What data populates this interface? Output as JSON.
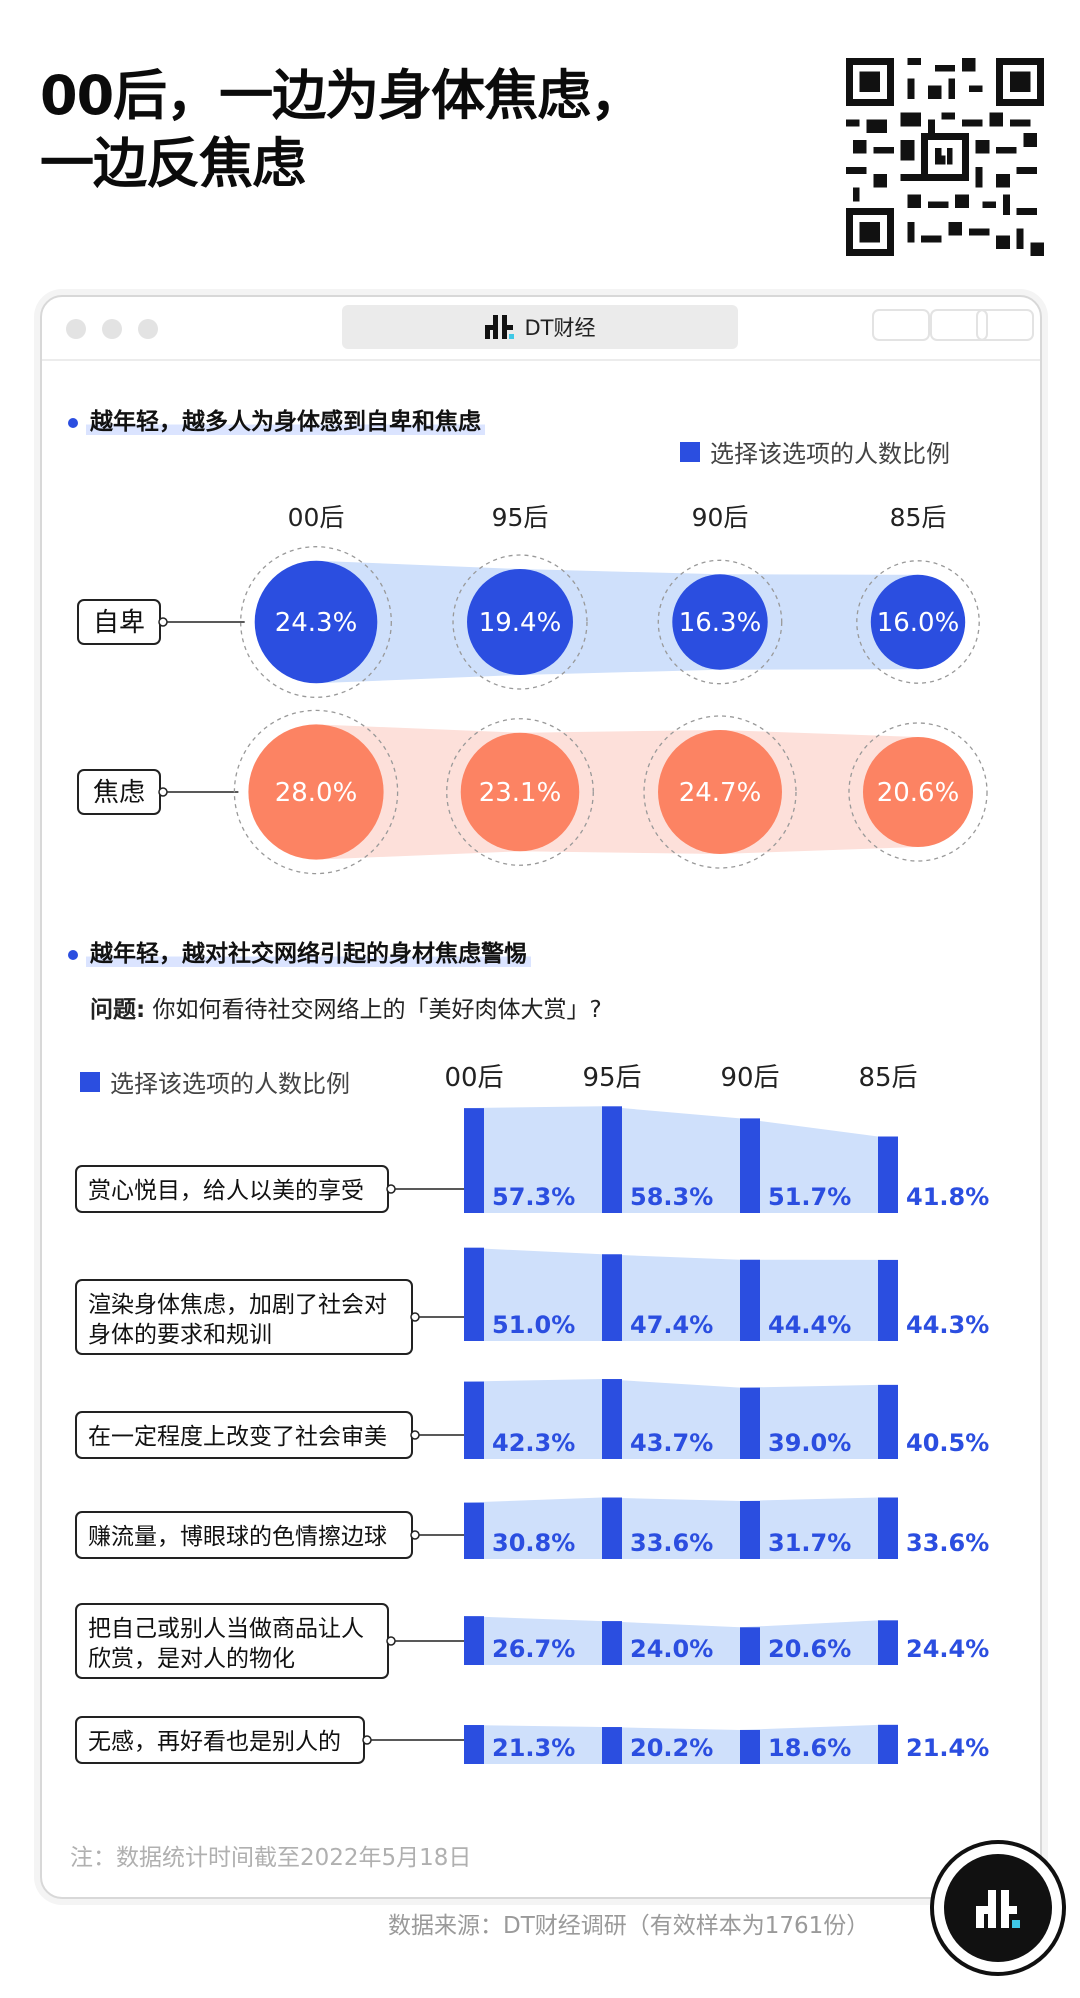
{
  "title_line1": "00后，一边为身体焦虑，",
  "title_line2": "一边反焦虑",
  "window": {
    "tab_label": "DT财经"
  },
  "section1": {
    "heading": "越年轻，越多人为身体感到自卑和焦虑",
    "legend": "选择该选项的人数比例"
  },
  "section2": {
    "heading": "越年轻，越对社交网络引起的身材焦虑警惕",
    "question_label": "问题:",
    "question_text": "你如何看待社交网络上的「美好肉体大赏」?",
    "legend": "选择该选项的人数比例"
  },
  "note": "注：数据统计时间截至2022年5月18日",
  "source": "数据来源：DT财经调研（有效样本为1761份）",
  "colors": {
    "blue": "#2b4ee0",
    "light_blue": "#cfe0fb",
    "coral": "#fc8363",
    "light_coral": "#fde0da"
  },
  "chart_data": [
    {
      "type": "bubble",
      "categories": [
        "00后",
        "95后",
        "90后",
        "85后"
      ],
      "series": [
        {
          "name": "自卑",
          "values": [
            24.3,
            19.4,
            16.3,
            16.0
          ],
          "labels": [
            "24.3%",
            "19.4%",
            "16.3%",
            "16.0%"
          ]
        },
        {
          "name": "焦虑",
          "values": [
            28.0,
            23.1,
            24.7,
            20.6
          ],
          "labels": [
            "28.0%",
            "23.1%",
            "24.7%",
            "20.6%"
          ]
        }
      ]
    },
    {
      "type": "bar",
      "categories": [
        "00后",
        "95后",
        "90后",
        "85后"
      ],
      "series": [
        {
          "name": "赏心悦目，给人以美的享受",
          "lines": [
            "赏心悦目，给人以美的享受"
          ],
          "values": [
            57.3,
            58.3,
            51.7,
            41.8
          ],
          "labels": [
            "57.3%",
            "58.3%",
            "51.7%",
            "41.8%"
          ]
        },
        {
          "name": "渲染身体焦虑，加剧了社会对身体的要求和规训",
          "lines": [
            "渲染身体焦虑，加剧了社会对",
            "身体的要求和规训"
          ],
          "values": [
            51.0,
            47.4,
            44.4,
            44.3
          ],
          "labels": [
            "51.0%",
            "47.4%",
            "44.4%",
            "44.3%"
          ]
        },
        {
          "name": "在一定程度上改变了社会审美",
          "lines": [
            "在一定程度上改变了社会审美"
          ],
          "values": [
            42.3,
            43.7,
            39.0,
            40.5
          ],
          "labels": [
            "42.3%",
            "43.7%",
            "39.0%",
            "40.5%"
          ]
        },
        {
          "name": "赚流量，博眼球的色情擦边球",
          "lines": [
            "赚流量，博眼球的色情擦边球"
          ],
          "values": [
            30.8,
            33.6,
            31.7,
            33.6
          ],
          "labels": [
            "30.8%",
            "33.6%",
            "31.7%",
            "33.6%"
          ]
        },
        {
          "name": "把自己或别人当做商品让人欣赏，是对人的物化",
          "lines": [
            "把自己或别人当做商品让人",
            "欣赏，是对人的物化"
          ],
          "values": [
            26.7,
            24.0,
            20.6,
            24.4
          ],
          "labels": [
            "26.7%",
            "24.0%",
            "20.6%",
            "24.4%"
          ]
        },
        {
          "name": "无感，再好看也是别人的",
          "lines": [
            "无感，再好看也是别人的"
          ],
          "values": [
            21.3,
            20.2,
            18.6,
            21.4
          ],
          "labels": [
            "21.3%",
            "20.2%",
            "18.6%",
            "21.4%"
          ]
        }
      ]
    }
  ]
}
